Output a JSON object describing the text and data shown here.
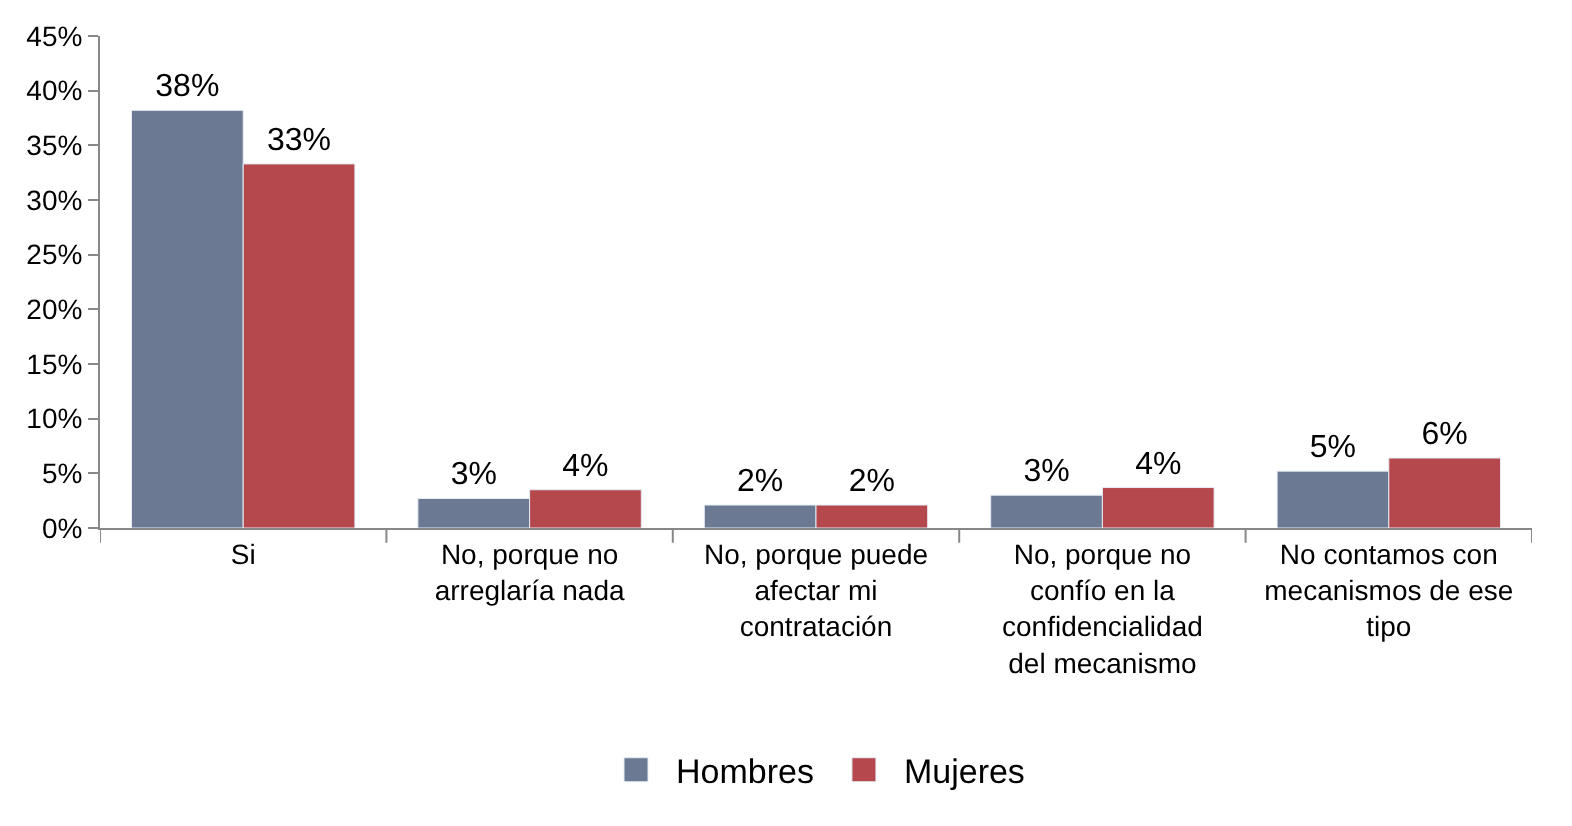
{
  "chart_data": {
    "type": "bar",
    "categories": [
      "Si",
      "No, porque no arreglaría nada",
      "No, porque puede afectar mi contratación",
      "No, porque no confío en la confidencialidad del mecanismo",
      "No contamos con mecanismos de ese tipo"
    ],
    "series": [
      {
        "name": "Hombres",
        "color": "#6b7a92",
        "values": [
          38.2,
          2.7,
          2.1,
          3.0,
          5.2
        ],
        "value_labels": [
          "38%",
          "3%",
          "2%",
          "3%",
          "5%"
        ]
      },
      {
        "name": "Mujeres",
        "color": "#b5484c",
        "values": [
          33.3,
          3.5,
          2.1,
          3.7,
          6.4
        ],
        "value_labels": [
          "33%",
          "4%",
          "2%",
          "4%",
          "6%"
        ]
      }
    ],
    "ylim": [
      0,
      45
    ],
    "yticks": [
      {
        "value": 0,
        "label": "0%"
      },
      {
        "value": 5,
        "label": "5%"
      },
      {
        "value": 10,
        "label": "10%"
      },
      {
        "value": 15,
        "label": "15%"
      },
      {
        "value": 20,
        "label": "20%"
      },
      {
        "value": 25,
        "label": "25%"
      },
      {
        "value": 30,
        "label": "30%"
      },
      {
        "value": 35,
        "label": "35%"
      },
      {
        "value": 40,
        "label": "40%"
      },
      {
        "value": 45,
        "label": "45%"
      }
    ],
    "grid": false,
    "legend": "bottom"
  }
}
